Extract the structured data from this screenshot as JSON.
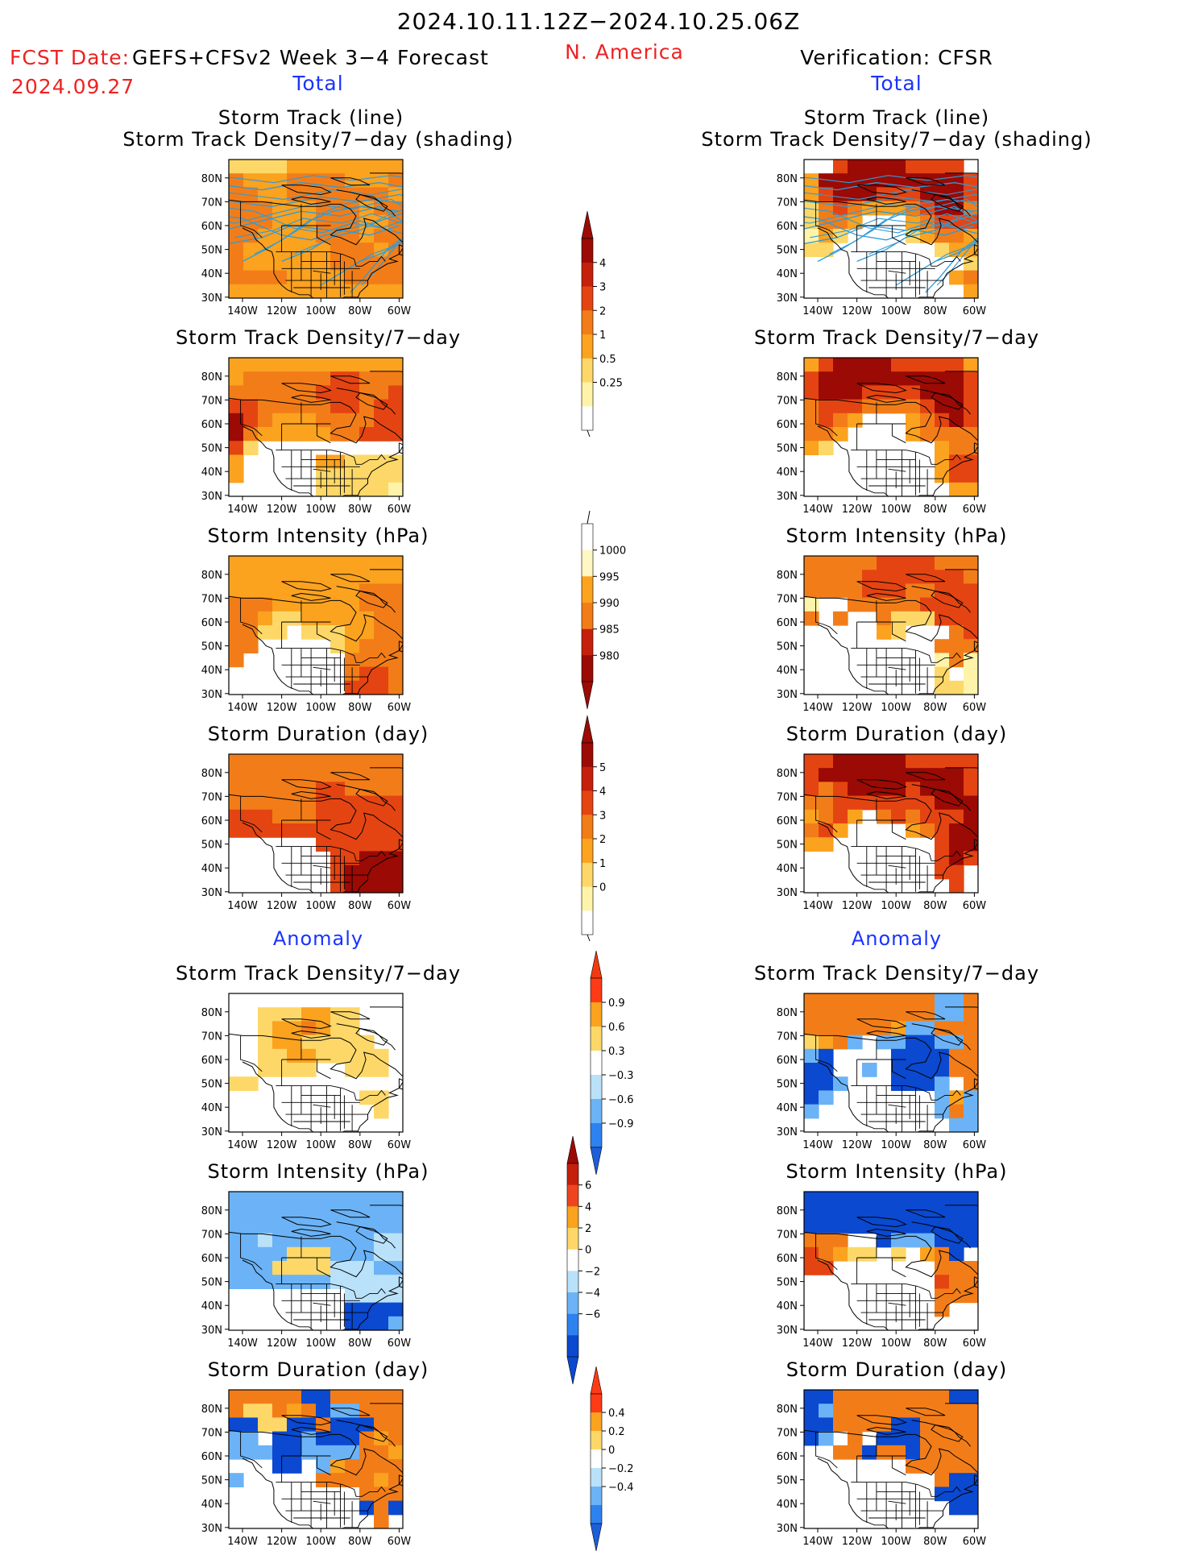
{
  "header": {
    "main_title": "2024.10.11.12Z−2024.10.25.06Z",
    "fcst_label": "FCST Date:",
    "fcst_model": "GEFS+CFSv2 Week 3−4 Forecast",
    "fcst_date": "2024.09.27",
    "region": "N. America",
    "verification": "Verification: CFSR"
  },
  "sections": {
    "total_left": "Total",
    "total_right": "Total",
    "anomaly_left": "Anomaly",
    "anomaly_right": "Anomaly"
  },
  "axes": {
    "lat_labels": [
      "80N",
      "70N",
      "60N",
      "50N",
      "40N",
      "30N"
    ],
    "lon_labels": [
      "140W",
      "120W",
      "100W",
      "80W",
      "60W"
    ]
  },
  "panel_titles": {
    "track_line": "Storm Track (line)",
    "track_shading": "Storm Track Density/7−day (shading)",
    "density": "Storm Track Density/7−day",
    "intensity": "Storm Intensity (hPa)",
    "duration": "Storm Duration (day)"
  },
  "colors": {
    "warm": [
      "#ffffff",
      "#fff3aa",
      "#fdd868",
      "#fba21f",
      "#f27d18",
      "#e44412",
      "#c4200c",
      "#9b0a04"
    ],
    "cool": [
      "#0a49d0",
      "#2d82f0",
      "#6bb3f6",
      "#b9e2fa",
      "#ffffff"
    ],
    "track_lines": "#2f9bd8",
    "map_lines": "#000000"
  },
  "chart_data": [
    {
      "type": "heatmap",
      "title": "Storm Track (line) / Storm Track Density/7−day (shading)",
      "source": "GEFS+CFSv2 Week 3−4 Forecast",
      "variable": "total",
      "colorbar": "density",
      "rows": [
        "BBBBCCCCCCCC",
        "DCCCDDDDCCCD",
        "DDCCDDDDDDDC",
        "DDDCCCDDDCDD",
        "DDDCCCDDDCCD",
        "DDCCCCDDDCDD",
        "DCCCCCCDDDCD",
        "DCCCCCCDDDDD",
        "DDDDCCCCDDDD",
        "CCCCCCCCCCCC"
      ],
      "has_track_lines": true
    },
    {
      "type": "heatmap",
      "title": "Storm Track (line) / Storm Track Density/7−day (shading)",
      "source": "CFSR",
      "variable": "total",
      "colorbar": "density",
      "rows": [
        "..EFFFFEEEE.",
        "CFFFFFFFFFFE",
        "CEFFFEEEFFFE",
        "BDEDCCCDEFFD",
        "BDDC...CDEEE",
        "ACB....BCDDC",
        "BB.......BCC",
        "...........B",
        "..........CD",
        "...........C"
      ],
      "has_track_lines": true
    },
    {
      "type": "heatmap",
      "title": "Storm Track Density/7−day",
      "source": "GEFS+CFSv2 Week 3−4 Forecast",
      "variable": "total",
      "colorbar": "density",
      "rows": [
        "CCCCCCCCCCCC",
        "CDDDDDDEEDDD",
        "DDDDDDEEEDDE",
        "EEDDDDDEEDEE",
        "FEDCCCDDDDEE",
        "FDCCCCCDDEEE",
        "EB..........",
        "C.....CCBBBB",
        "C.....BBBBBB",
        "......BBBBBA"
      ]
    },
    {
      "type": "heatmap",
      "title": "Storm Track Density/7−day",
      "source": "CFSR",
      "variable": "total",
      "colorbar": "density",
      "rows": [
        "CEFFFFEEEEEC",
        "EFFFFFFFFFFE",
        "EFFFEEEEFFFE",
        "DEEEDDDDEFFE",
        "DEDC...CDEFE",
        "DDC....CDDDD",
        "CB.......CDD",
        ".........CEE",
        ".........CEE",
        "..........CC"
      ]
    },
    {
      "type": "heatmap",
      "title": "Storm Intensity (hPa)",
      "source": "GEFS+CFSv2 Week 3−4 Forecast",
      "variable": "total",
      "colorbar": "intensity",
      "rows": [
        "CCCCCCCCCCCC",
        "CCCCCCCCCCCC",
        "CCCCCCCCCDDD",
        "DDDCCCCCCDDD",
        "DDCBBCCCCCDD",
        "DDBB.BBBCCDD",
        "DD.....BCDDD",
        "D.......DDDD",
        "........DEED",
        "........EEED"
      ]
    },
    {
      "type": "heatmap",
      "title": "Storm Intensity (hPa)",
      "source": "CFSR",
      "variable": "total",
      "colorbar": "intensity",
      "rows": [
        "DDDDDEEEEDDD",
        "DDDDEEEEEEED",
        "DDDDEEEDDEEE",
        "A..DDDDDEEEE",
        "D.D..DBBBEEE",
        ".....CB...DE",
        ".........DDD",
        ".........ADA",
        ".........B.A",
        ".........BBA"
      ]
    },
    {
      "type": "heatmap",
      "title": "Storm Duration (day)",
      "source": "GEFS+CFSv2 Week 3−4 Forecast",
      "variable": "total",
      "colorbar": "duration",
      "rows": [
        "DDDDDDDDDDDD",
        "DDDDDDDDDDDD",
        "DDDDDDEEDDDD",
        "DDDDDDEEEEEE",
        "EEEDDDEEEEEE",
        "EEEEEEEEEEEE",
        "......EEEEEE",
        ".......EEFFF",
        ".......EFFFF",
        ".......EFFFF"
      ]
    },
    {
      "type": "heatmap",
      "title": "Storm Duration (day)",
      "source": "CFSR",
      "variable": "total",
      "colorbar": "duration",
      "rows": [
        "EEFFFFFEEEEE",
        "EFFFFFFFFFFE",
        "EDEFFFFEFFFE",
        "DDEEEEEEEFFF",
        "CDEC.DEDEEEF",
        "DEC....CDEFF",
        "CC.......EFF",
        ".........EFE",
        ".........EE.",
        "..........E."
      ]
    },
    {
      "type": "heatmap",
      "title": "Storm Track Density/7−day (Anomaly)",
      "source": "GEFS+CFSv2 Week 3−4 Forecast",
      "variable": "anomaly",
      "colorbar": "density_anom",
      "rows": [
        "............",
        "..BBBCCBB...",
        "..BCCDCBB...",
        "..BCCBBBBB..",
        "..BBCCBBBBB.",
        "..BBBB..BBB.",
        "BB..........",
        ".........BB.",
        "..........B.",
        "............"
      ]
    },
    {
      "type": "heatmap",
      "title": "Storm Track Density/7−day (Anomaly)",
      "source": "CFSR",
      "variable": "anomaly",
      "colorbar": "density_anom",
      "rows": [
        "DDDDDDDDDbbD",
        "DDDDDDDDDbbD",
        "DDDDDDCbbDDD",
        "BCDb.bbaabbD",
        "ba....aaaaDD",
        "aa..b.aaaaDD",
        "aab...aaab.D",
        "ab.......bCb",
        "b........bDb",
        "..........bb"
      ]
    },
    {
      "type": "heatmap",
      "title": "Storm Intensity (hPa) (Anomaly)",
      "source": "GEFS+CFSv2 Week 3−4 Forecast",
      "variable": "anomaly",
      "colorbar": "intensity_anom",
      "rows": [
        "bbbbbbbbbbbb",
        "bbbbbbbbbbbb",
        "bbbbbbbbbbbb",
        "bbcbbbbbbbcc",
        "bbbbBBBbbbcc",
        "bbbBBBBcccbb",
        "bbbbbbbccccc",
        "........cccc",
        "........aaaa",
        "........aaab"
      ]
    },
    {
      "type": "heatmap",
      "title": "Storm Intensity (hPa) (Anomaly)",
      "source": "CFSR",
      "variable": "anomaly",
      "colorbar": "intensity_anom",
      "rows": [
        "aaaaaaaaaaaa",
        "aaaaaaaaaaaa",
        "aaaaaaaaaaaa",
        "DDD..abbbaaa",
        "EDCBB.B.CDa.",
        "EE.......DDD",
        ".........EDD",
        ".........DDD",
        ".........D..",
        "............"
      ]
    },
    {
      "type": "heatmap",
      "title": "Storm Duration (day) (Anomaly)",
      "source": "GEFS+CFSv2 Week 3−4 Forecast",
      "variable": "anomaly",
      "colorbar": "duration_anom",
      "rows": [
        "DDDDDaaDDDDD",
        "DBBDCDabbDDD",
        "aaBBaaDaaaDD",
        "bb.aabaaaDCD",
        "bbbaabbbbDDC",
        "...aa.bCDDDD",
        "b.....DDDDCD",
        ".........DDD",
        ".........aDa",
        "..........D."
      ]
    },
    {
      "type": "heatmap",
      "title": "Storm Duration (day) (Anomaly)",
      "source": "CFSR",
      "variable": "anomaly",
      "colorbar": "duration_anom",
      "rows": [
        "aaDDDDDDDDaa",
        "abDDDDDDDDDD",
        "aaDDDDaaDDDD",
        "ab.D.aaaDDDD",
        "..DDaDDaDDDD",
        ".......DDDDD",
        ".........Daa",
        ".........aaa",
        "..........aa",
        "............"
      ]
    }
  ],
  "colorbars": [
    {
      "name": "density",
      "labels": [
        "4",
        "3",
        "2",
        "1",
        "0.5",
        "0.25"
      ]
    },
    {
      "name": "intensity",
      "labels": [
        "1000",
        "995",
        "990",
        "985",
        "980"
      ]
    },
    {
      "name": "duration",
      "labels": [
        "5",
        "4",
        "3",
        "2",
        "1",
        "0"
      ]
    },
    {
      "name": "density_anom",
      "labels": [
        "0.9",
        "0.6",
        "0.3",
        "−0.3",
        "−0.6",
        "−0.9"
      ]
    },
    {
      "name": "intensity_anom",
      "labels": [
        "6",
        "4",
        "2",
        "0",
        "−2",
        "−4",
        "−6"
      ]
    },
    {
      "name": "duration_anom",
      "labels": [
        "0.4",
        "0.2",
        "0",
        "−0.2",
        "−0.4"
      ]
    }
  ]
}
